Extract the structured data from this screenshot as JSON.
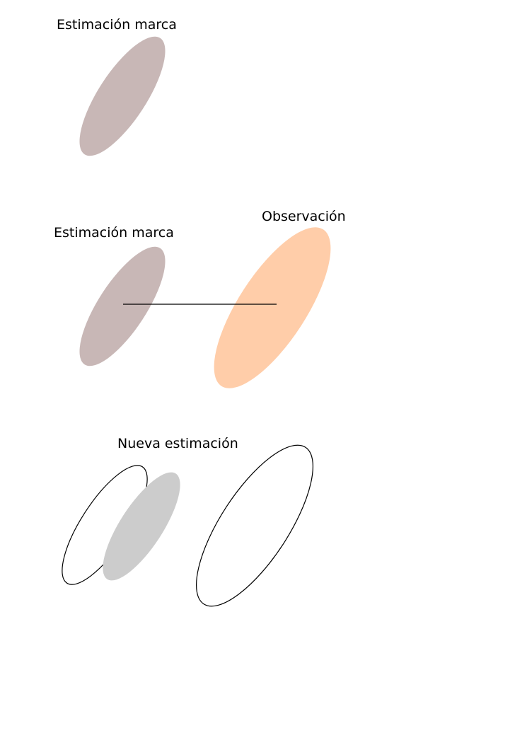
{
  "panels": [
    {
      "id": "prior",
      "label": "Estimación marca",
      "landmark_color": "#c8b7b6"
    },
    {
      "id": "observation",
      "landmark_label": "Estimación marca",
      "observation_label": "Observación",
      "landmark_color": "#c8b7b6",
      "observation_color": "#ffcda9",
      "connector_color": "#000000"
    },
    {
      "id": "update",
      "label": "Nueva estimación",
      "new_estimate_color": "#cccccc",
      "outline_color": "#000000"
    }
  ]
}
